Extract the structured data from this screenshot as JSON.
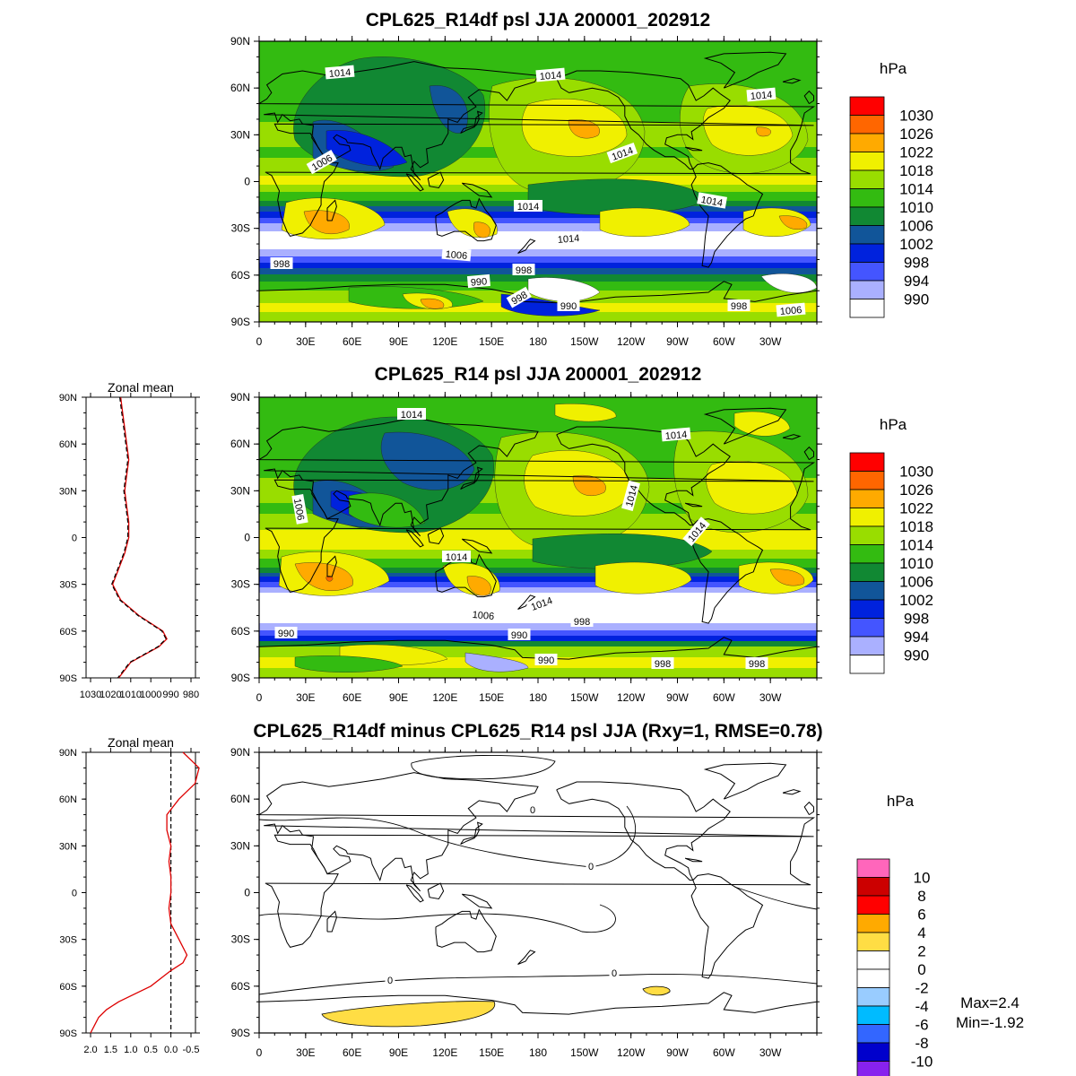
{
  "panels": [
    {
      "title": "CPL625_R14df psl JJA 200001_202912",
      "unit": "hPa",
      "colorbar": {
        "labels": [
          "1030",
          "1026",
          "1022",
          "1018",
          "1014",
          "1010",
          "1006",
          "1002",
          "998",
          "994",
          "990"
        ],
        "colors": [
          "#ff0000",
          "#ff6600",
          "#ffaa00",
          "#f0f000",
          "#99dd00",
          "#33bb11",
          "#118833",
          "#115599",
          "#0022dd",
          "#4455ff",
          "#aab0ff",
          "#ffffff"
        ]
      },
      "contour_labels": [
        "1014",
        "1014",
        "1014",
        "1006",
        "1014",
        "1014",
        "1014",
        "1014",
        "1006",
        "998",
        "998",
        "990",
        "998",
        "990",
        "998",
        "1006"
      ]
    },
    {
      "title": "CPL625_R14 psl JJA 200001_202912",
      "unit": "hPa",
      "colorbar": {
        "labels": [
          "1030",
          "1026",
          "1022",
          "1018",
          "1014",
          "1010",
          "1006",
          "1002",
          "998",
          "994",
          "990"
        ],
        "colors": [
          "#ff0000",
          "#ff6600",
          "#ffaa00",
          "#f0f000",
          "#99dd00",
          "#33bb11",
          "#118833",
          "#115599",
          "#0022dd",
          "#4455ff",
          "#aab0ff",
          "#ffffff"
        ]
      },
      "contour_labels": [
        "1014",
        "1014",
        "1006",
        "1014",
        "1014",
        "1014",
        "1006",
        "1014",
        "990",
        "998",
        "990",
        "990",
        "998",
        "998"
      ],
      "zonal_mean": {
        "title": "Zonal mean",
        "x_ticks": [
          "1030",
          "1020",
          "1010",
          "1000",
          "990",
          "980"
        ],
        "lat": [
          90,
          80,
          70,
          60,
          50,
          40,
          30,
          20,
          10,
          0,
          -10,
          -20,
          -30,
          -40,
          -50,
          -60,
          -65,
          -70,
          -80,
          -90
        ],
        "psl": [
          1015,
          1014,
          1013,
          1012,
          1011,
          1012,
          1013,
          1012,
          1011,
          1011,
          1013,
          1016,
          1019,
          1015,
          1006,
          994,
          992,
          996,
          1010,
          1016
        ]
      }
    },
    {
      "title": "CPL625_R14df minus CPL625_R14 psl JJA (Rxy=1, RMSE=0.78)",
      "unit": "hPa",
      "colorbar": {
        "labels": [
          "10",
          "8",
          "6",
          "4",
          "2",
          "0",
          "-2",
          "-4",
          "-6",
          "-8",
          "-10"
        ],
        "colors": [
          "#ff66bb",
          "#cc0000",
          "#ff0000",
          "#ffaa00",
          "#ffdd44",
          "#ffffff",
          "#ffffff",
          "#99ccff",
          "#00bbff",
          "#3366ff",
          "#0000cc",
          "#8822ee"
        ]
      },
      "contour_labels": [
        "0",
        "0",
        "0",
        "0"
      ],
      "zonal_mean": {
        "title": "Zonal mean",
        "x_ticks": [
          "2.0",
          "1.5",
          "1.0",
          "0.5",
          "0.0",
          "-0.5"
        ],
        "lat": [
          90,
          85,
          80,
          70,
          60,
          50,
          40,
          30,
          20,
          10,
          0,
          -10,
          -20,
          -30,
          -40,
          -45,
          -50,
          -60,
          -70,
          -75,
          -80,
          -90
        ],
        "diff": [
          -0.3,
          -0.5,
          -0.7,
          -0.6,
          -0.2,
          0.1,
          0.1,
          0.0,
          0.05,
          0.0,
          0.0,
          0.05,
          0.0,
          -0.2,
          -0.4,
          -0.3,
          0.0,
          0.5,
          1.3,
          1.6,
          1.8,
          2.0
        ]
      },
      "stats": {
        "max": "Max=2.4",
        "min": "Min=-1.92"
      }
    }
  ],
  "map_axes": {
    "lat_ticks": [
      "90N",
      "60N",
      "30N",
      "0",
      "30S",
      "60S",
      "90S"
    ],
    "lon_ticks": [
      "0",
      "30E",
      "60E",
      "90E",
      "120E",
      "150E",
      "180",
      "150W",
      "120W",
      "90W",
      "60W",
      "30W"
    ]
  },
  "zonal_axes": {
    "lat_ticks": [
      "90N",
      "60N",
      "30N",
      "0",
      "30S",
      "60S",
      "90S"
    ]
  }
}
